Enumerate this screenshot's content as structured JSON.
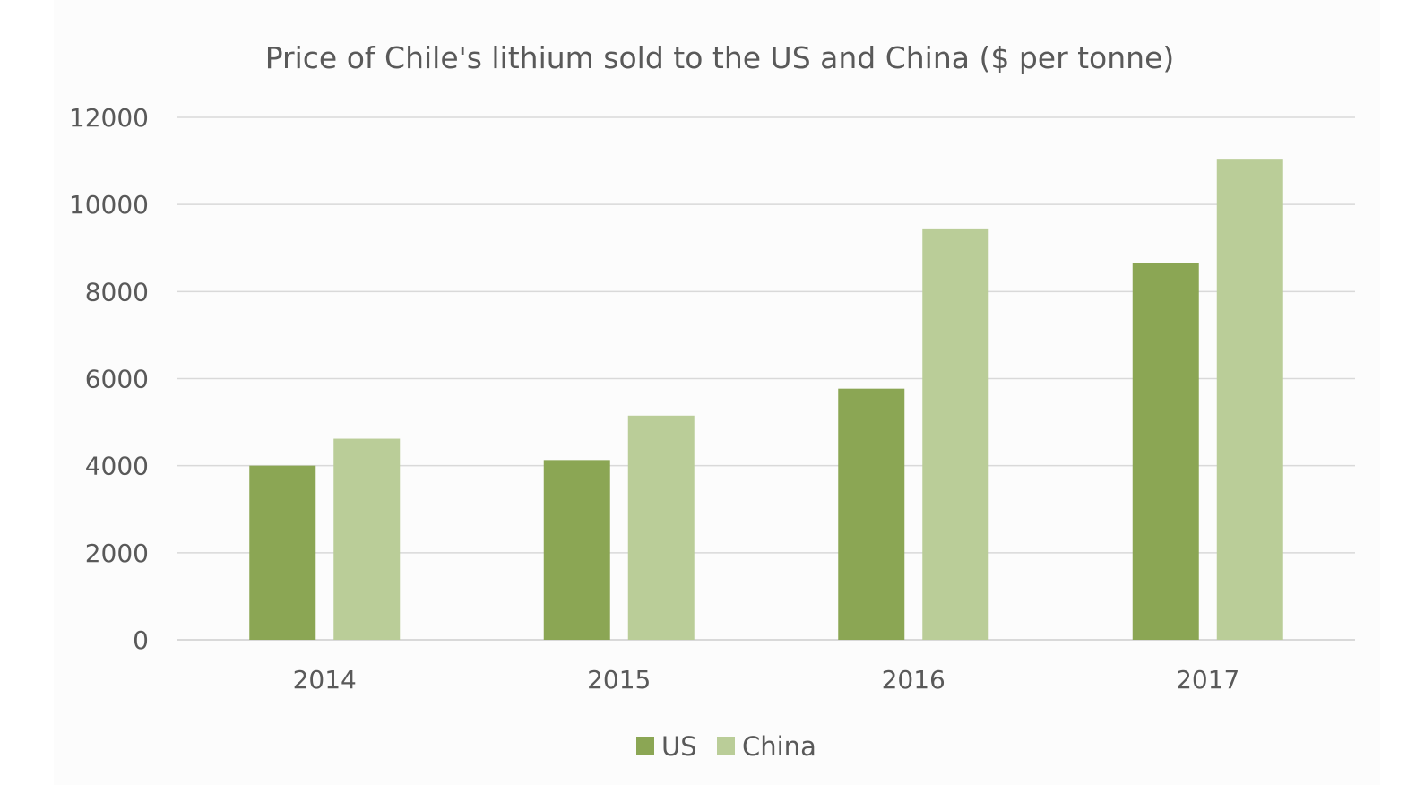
{
  "chart_data": {
    "type": "bar",
    "title": "Price of Chile's lithium sold to the US and China ($ per tonne)",
    "xlabel": "",
    "ylabel": "",
    "categories": [
      "2014",
      "2015",
      "2016",
      "2017"
    ],
    "series": [
      {
        "name": "US",
        "color": "#8ba654",
        "values": [
          4000,
          4130,
          5770,
          8650
        ]
      },
      {
        "name": "China",
        "color": "#bacd98",
        "values": [
          4620,
          5150,
          9450,
          11050
        ]
      }
    ],
    "ylim": [
      0,
      12000
    ],
    "yticks": [
      "0",
      "2000",
      "4000",
      "6000",
      "8000",
      "10000",
      "12000"
    ],
    "grid": true,
    "legend_position": "bottom"
  }
}
